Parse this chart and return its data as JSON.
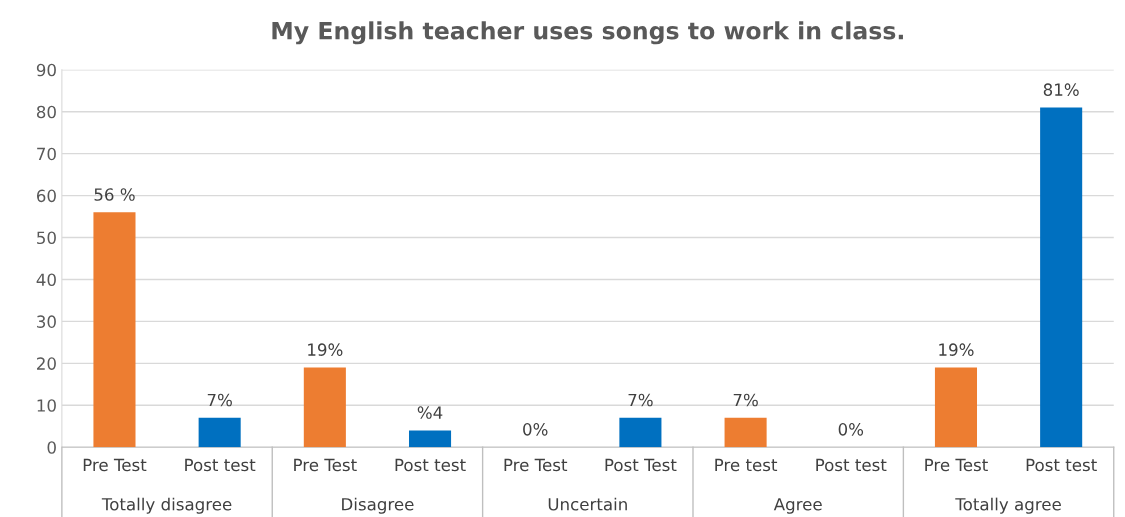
{
  "chart_data": {
    "type": "bar",
    "title": "My English teacher uses songs to work in class.",
    "categories": [
      "Pre Test",
      "Post test",
      "Pre Test",
      "Post test",
      "Pre Test",
      "Post Test",
      "Pre test",
      "Post test",
      "Pre Test",
      "Post test"
    ],
    "values": [
      56,
      7,
      19,
      4,
      0,
      7,
      7,
      0,
      19,
      81
    ],
    "colors": [
      "#ed7d31",
      "#0070c0",
      "#ed7d31",
      "#0070c0",
      "#ed7d31",
      "#0070c0",
      "#ed7d31",
      "#0070c0",
      "#ed7d31",
      "#0070c0"
    ],
    "value_labels": [
      "56 %",
      "7%",
      "19%",
      "%4",
      "0%",
      "7%",
      "7%",
      "0%",
      "19%",
      "81%"
    ],
    "annotations": [
      "Totally disagree",
      "Disagree",
      "Uncertain",
      "Agree",
      "Totally agree"
    ],
    "ylim": [
      0,
      90
    ],
    "yticks": [
      0,
      10,
      20,
      30,
      40,
      50,
      60,
      70,
      80,
      90
    ],
    "grid": "y",
    "legend": false
  }
}
